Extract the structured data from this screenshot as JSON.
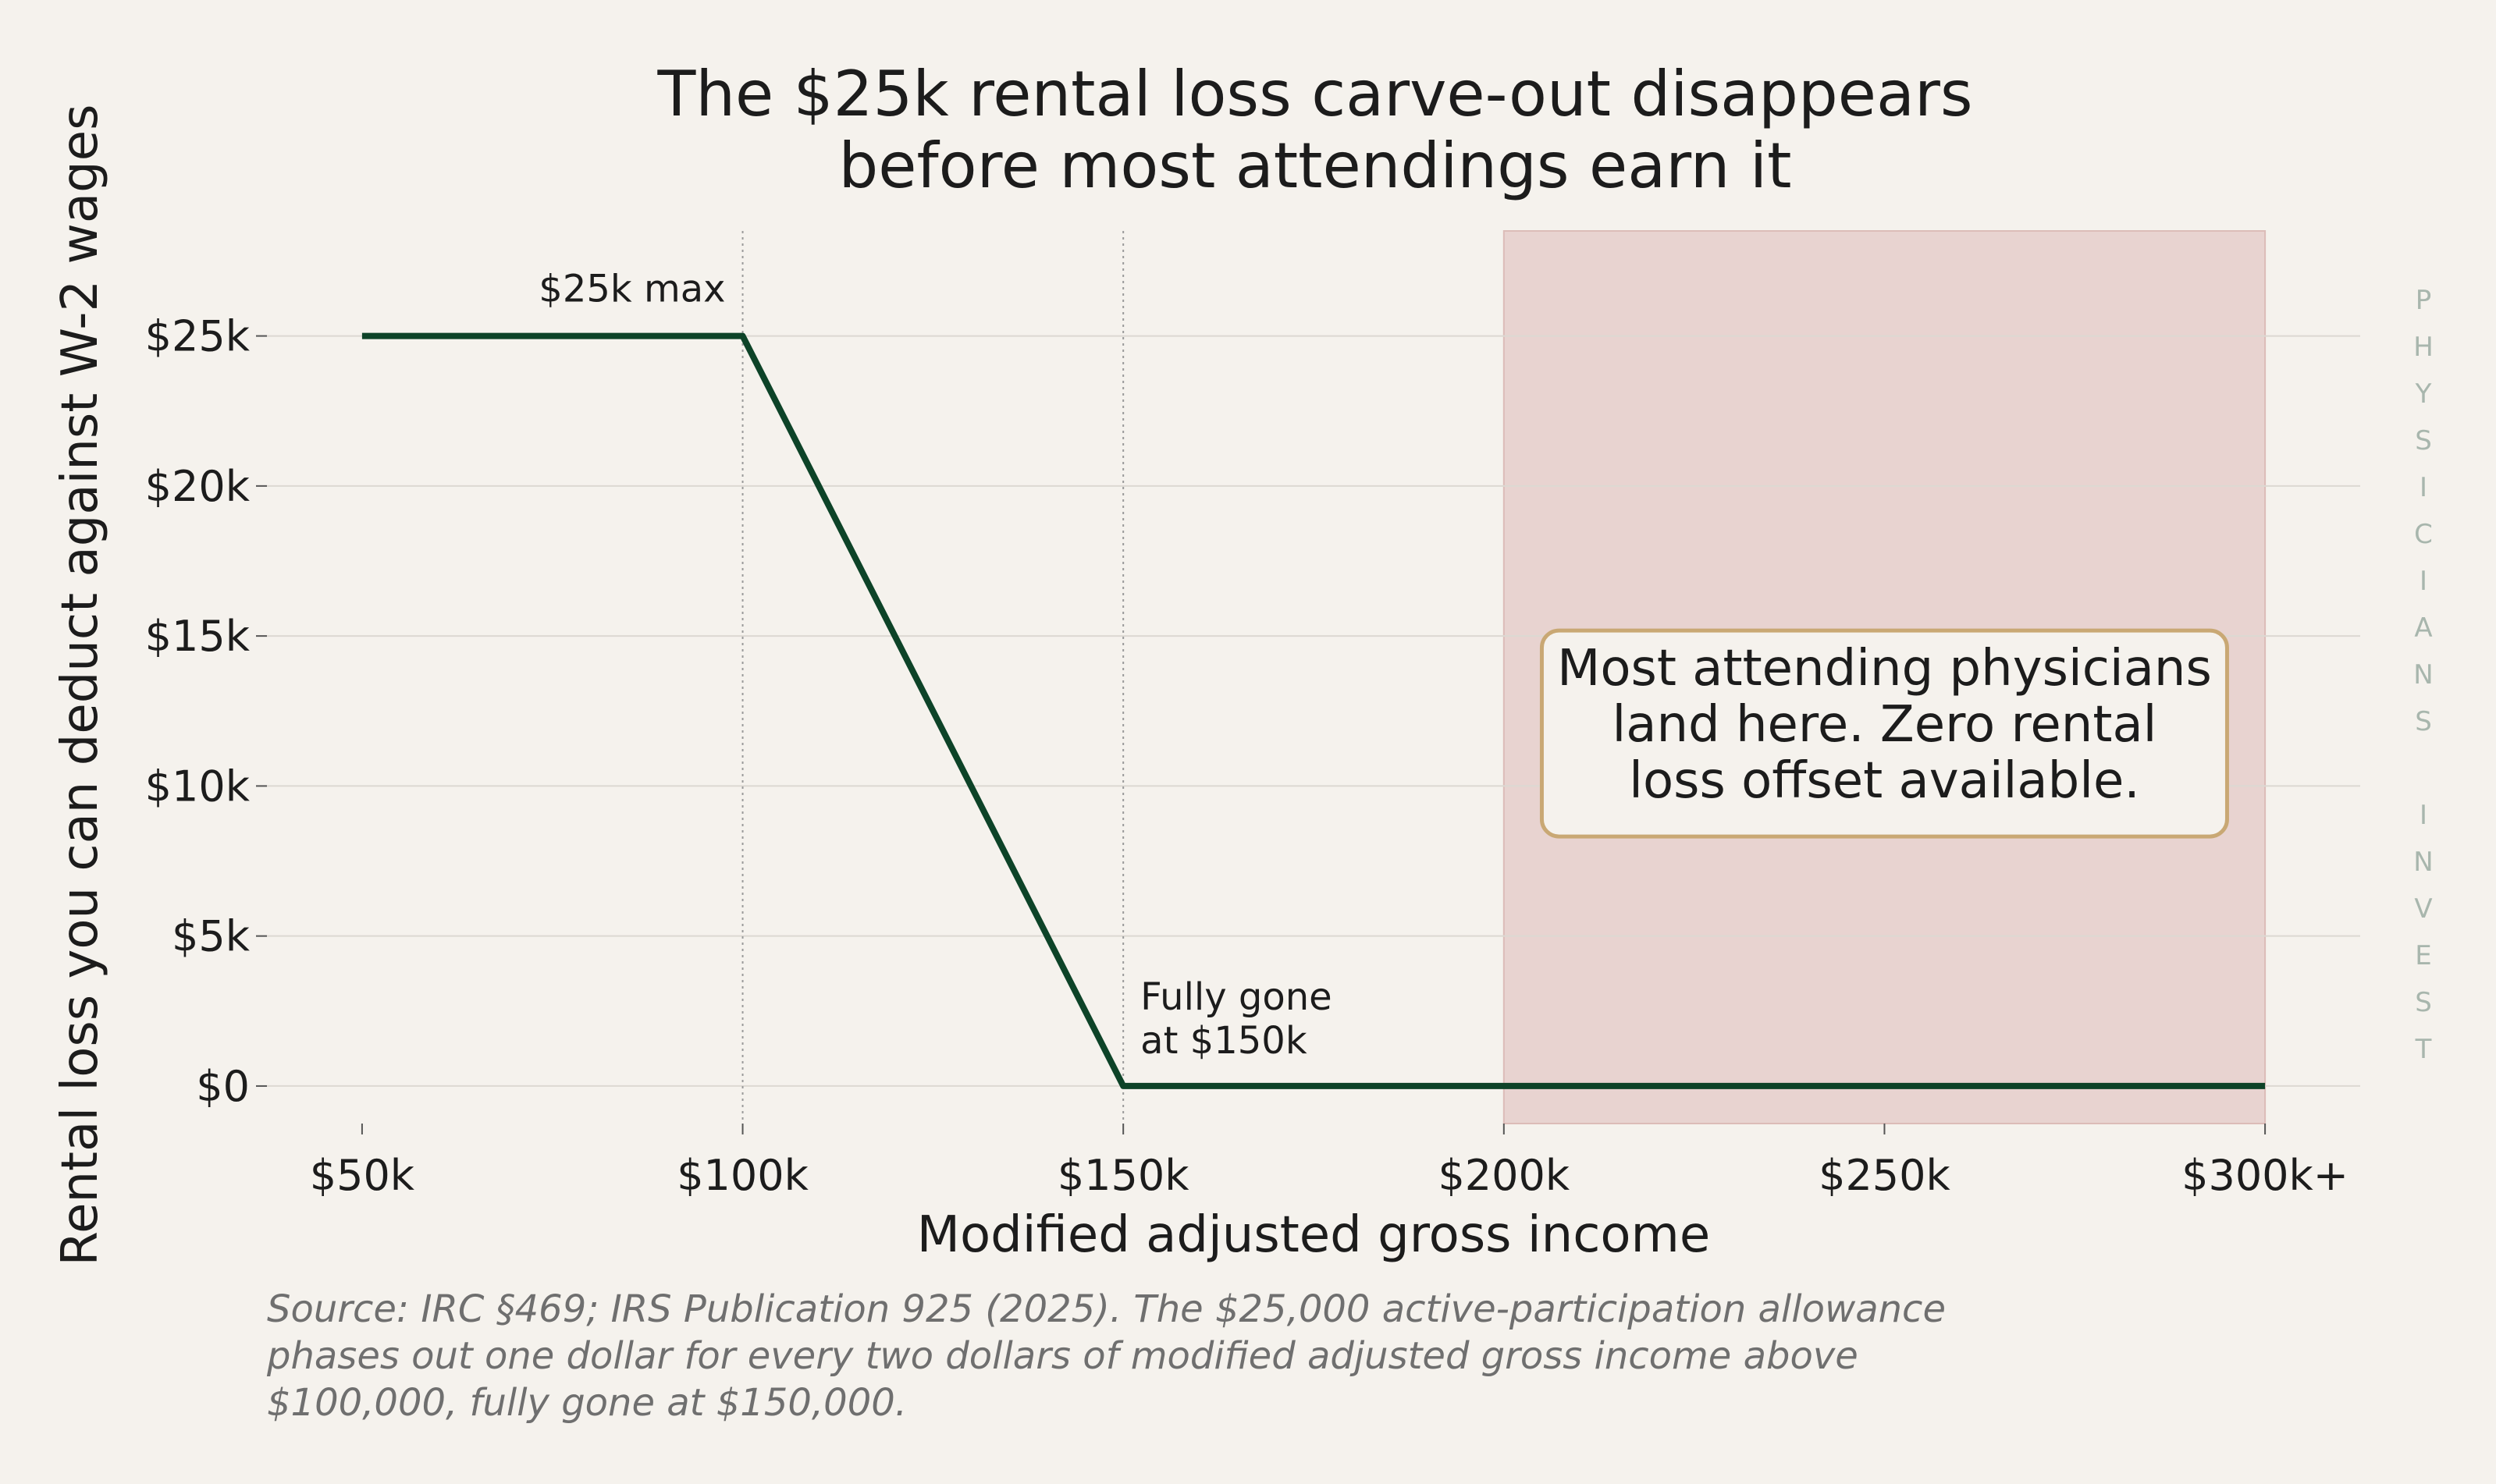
{
  "chart_data": {
    "type": "line",
    "title_lines": [
      "The $25k rental loss carve-out disappears",
      "before most attendings earn it"
    ],
    "xlabel": "Modified adjusted gross income",
    "ylabel": "Rental loss you can deduct against W-2 wages",
    "xlim": [
      37500,
      312500
    ],
    "ylim": [
      -1250,
      28500
    ],
    "x_ticks": [
      {
        "value": 50000,
        "label": "$50k"
      },
      {
        "value": 100000,
        "label": "$100k"
      },
      {
        "value": 150000,
        "label": "$150k"
      },
      {
        "value": 200000,
        "label": "$200k"
      },
      {
        "value": 250000,
        "label": "$250k"
      },
      {
        "value": 300000,
        "label": "$300k+"
      }
    ],
    "y_ticks": [
      {
        "value": 0,
        "label": "$0"
      },
      {
        "value": 5000,
        "label": "$5k"
      },
      {
        "value": 10000,
        "label": "$10k"
      },
      {
        "value": 15000,
        "label": "$15k"
      },
      {
        "value": 20000,
        "label": "$20k"
      },
      {
        "value": 25000,
        "label": "$25k"
      }
    ],
    "grid": "horizontal",
    "series": [
      {
        "color": "#0d4328",
        "points": [
          {
            "x": 50000,
            "y": 25000
          },
          {
            "x": 100000,
            "y": 25000
          },
          {
            "x": 150000,
            "y": 0
          },
          {
            "x": 300000,
            "y": 0
          }
        ]
      }
    ],
    "reference_lines": [
      100000,
      150000
    ],
    "shaded_region": {
      "x_start": 200000,
      "x_end": 300000,
      "color": "#e8d3d0",
      "edge_color": "#dcbcb8"
    },
    "annotations": [
      {
        "lines": [
          "$25k max"
        ],
        "x": 100000,
        "y": 25000
      },
      {
        "lines": [
          "Fully gone",
          "at $150k"
        ],
        "x": 150000,
        "y": 0
      }
    ],
    "callout": {
      "lines": [
        "Most attending physicians",
        "land here. Zero rental",
        "loss offset available."
      ],
      "border_color": "#c9a874",
      "anchor_x": 250000,
      "anchor_y": 11750
    }
  },
  "watermark": "PHYSICIANS INVEST",
  "source_lines": [
    "Source: IRC §469; IRS Publication 925 (2025). The $25,000 active-participation allowance",
    "phases out one dollar for every two dollars of modified adjusted gross income above",
    "$100,000, fully gone at $150,000."
  ],
  "colors": {
    "background": "#f5f2ed",
    "line": "#0d4328",
    "grid": "#dcd8d2",
    "text": "#1c1c1c",
    "source_text": "#6f6f6f",
    "watermark": "#a8b6ad"
  }
}
